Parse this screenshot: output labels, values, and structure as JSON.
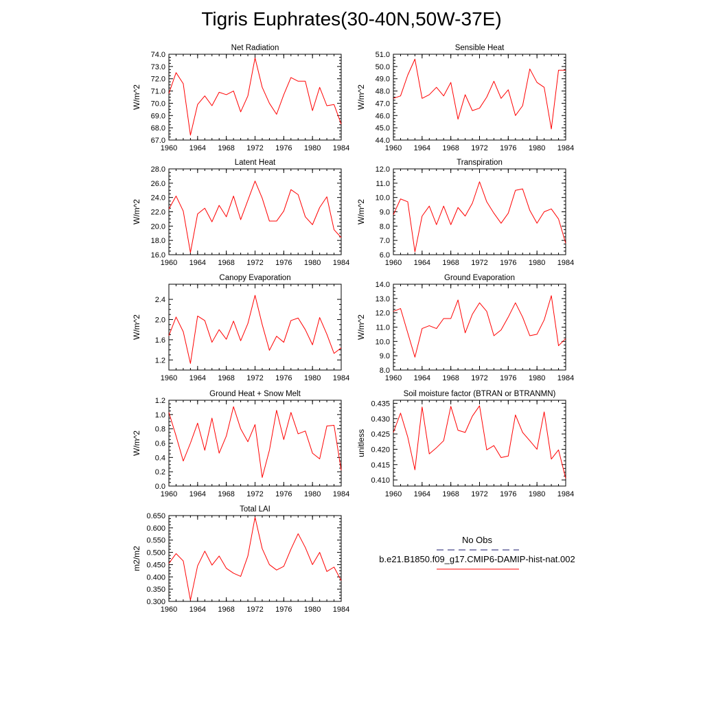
{
  "page_title": "Tigris Euphrates(30-40N,50W-37E)",
  "legend": {
    "entries": [
      {
        "label": "No Obs",
        "color": "#1a1a6e",
        "style": "dashed"
      },
      {
        "label": "b.e21.B1850.f09_g17.CMIP6-DAMIP-hist-nat.002",
        "color": "#ff0000",
        "style": "solid"
      }
    ]
  },
  "chart_data": [
    {
      "type": "line",
      "title": "Net Radiation",
      "ylabel": "W/m^2",
      "xlim": [
        1960,
        1984
      ],
      "ylim": [
        67.0,
        74.0
      ],
      "xticks": [
        "1960",
        "1964",
        "1968",
        "1972",
        "1976",
        "1980",
        "1984"
      ],
      "yticks": [
        "67.0",
        "68.0",
        "69.0",
        "70.0",
        "71.0",
        "72.0",
        "73.0",
        "74.0"
      ],
      "series": [
        {
          "color": "#ff0000",
          "x": [
            1960,
            1961,
            1962,
            1963,
            1964,
            1965,
            1966,
            1967,
            1968,
            1969,
            1970,
            1971,
            1972,
            1973,
            1974,
            1975,
            1976,
            1977,
            1978,
            1979,
            1980,
            1981,
            1982,
            1983,
            1984
          ],
          "y": [
            70.8,
            72.5,
            71.6,
            67.4,
            69.9,
            70.6,
            69.8,
            70.9,
            70.7,
            71.0,
            69.3,
            70.6,
            73.7,
            71.3,
            70.0,
            69.1,
            70.7,
            72.1,
            71.8,
            71.8,
            69.4,
            71.3,
            69.8,
            69.9,
            68.3
          ]
        }
      ]
    },
    {
      "type": "line",
      "title": "Sensible Heat",
      "ylabel": "W/m^2",
      "xlim": [
        1960,
        1984
      ],
      "ylim": [
        44.0,
        51.0
      ],
      "xticks": [
        "1960",
        "1964",
        "1968",
        "1972",
        "1976",
        "1980",
        "1984"
      ],
      "yticks": [
        "44.0",
        "45.0",
        "46.0",
        "47.0",
        "48.0",
        "49.0",
        "50.0",
        "51.0"
      ],
      "series": [
        {
          "color": "#ff0000",
          "x": [
            1960,
            1961,
            1962,
            1963,
            1964,
            1965,
            1966,
            1967,
            1968,
            1969,
            1970,
            1971,
            1972,
            1973,
            1974,
            1975,
            1976,
            1977,
            1978,
            1979,
            1980,
            1981,
            1982,
            1983,
            1984
          ],
          "y": [
            47.4,
            47.6,
            49.3,
            50.6,
            47.4,
            47.7,
            48.3,
            47.6,
            48.7,
            45.7,
            47.7,
            46.4,
            46.6,
            47.5,
            48.8,
            47.4,
            48.1,
            46.0,
            46.8,
            49.8,
            48.7,
            48.3,
            44.9,
            49.7,
            49.7
          ]
        }
      ]
    },
    {
      "type": "line",
      "title": "Latent Heat",
      "ylabel": "W/m^2",
      "xlim": [
        1960,
        1984
      ],
      "ylim": [
        16.0,
        28.0
      ],
      "xticks": [
        "1960",
        "1964",
        "1968",
        "1972",
        "1976",
        "1980",
        "1984"
      ],
      "yticks": [
        "16.0",
        "18.0",
        "20.0",
        "22.0",
        "24.0",
        "26.0",
        "28.0"
      ],
      "series": [
        {
          "color": "#ff0000",
          "x": [
            1960,
            1961,
            1962,
            1963,
            1964,
            1965,
            1966,
            1967,
            1968,
            1969,
            1970,
            1971,
            1972,
            1973,
            1974,
            1975,
            1976,
            1977,
            1978,
            1979,
            1980,
            1981,
            1982,
            1983,
            1984
          ],
          "y": [
            22.4,
            24.2,
            22.1,
            16.3,
            21.7,
            22.5,
            20.6,
            22.9,
            21.3,
            24.2,
            20.9,
            23.6,
            26.3,
            23.9,
            20.7,
            20.7,
            22.1,
            25.1,
            24.4,
            21.3,
            20.2,
            22.6,
            24.1,
            19.5,
            18.4
          ]
        }
      ]
    },
    {
      "type": "line",
      "title": "Transpiration",
      "ylabel": "W/m^2",
      "xlim": [
        1960,
        1984
      ],
      "ylim": [
        6.0,
        12.0
      ],
      "xticks": [
        "1960",
        "1964",
        "1968",
        "1972",
        "1976",
        "1980",
        "1984"
      ],
      "yticks": [
        "6.0",
        "7.0",
        "8.0",
        "9.0",
        "10.0",
        "11.0",
        "12.0"
      ],
      "series": [
        {
          "color": "#ff0000",
          "x": [
            1960,
            1961,
            1962,
            1963,
            1964,
            1965,
            1966,
            1967,
            1968,
            1969,
            1970,
            1971,
            1972,
            1973,
            1974,
            1975,
            1976,
            1977,
            1978,
            1979,
            1980,
            1981,
            1982,
            1983,
            1984
          ],
          "y": [
            8.8,
            9.9,
            9.7,
            6.2,
            8.7,
            9.4,
            8.1,
            9.4,
            8.1,
            9.3,
            8.7,
            9.6,
            11.1,
            9.7,
            8.9,
            8.2,
            8.9,
            10.5,
            10.6,
            9.1,
            8.2,
            9.0,
            9.2,
            8.5,
            6.8
          ]
        }
      ]
    },
    {
      "type": "line",
      "title": "Canopy Evaporation",
      "ylabel": "W/m^2",
      "xlim": [
        1960,
        1984
      ],
      "ylim": [
        1.0,
        2.7
      ],
      "xticks": [
        "1960",
        "1964",
        "1968",
        "1972",
        "1976",
        "1980",
        "1984"
      ],
      "yticks": [
        "1.2",
        "1.6",
        "2.0",
        "2.4"
      ],
      "ytick_values": [
        1.2,
        1.6,
        2.0,
        2.4
      ],
      "series": [
        {
          "color": "#ff0000",
          "x": [
            1960,
            1961,
            1962,
            1963,
            1964,
            1965,
            1966,
            1967,
            1968,
            1969,
            1970,
            1971,
            1972,
            1973,
            1974,
            1975,
            1976,
            1977,
            1978,
            1979,
            1980,
            1981,
            1982,
            1983,
            1984
          ],
          "y": [
            1.68,
            2.05,
            1.76,
            1.13,
            2.07,
            1.98,
            1.55,
            1.8,
            1.61,
            1.97,
            1.58,
            1.92,
            2.48,
            1.9,
            1.39,
            1.67,
            1.55,
            1.98,
            2.03,
            1.8,
            1.5,
            2.04,
            1.71,
            1.33,
            1.44
          ]
        }
      ]
    },
    {
      "type": "line",
      "title": "Ground Evaporation",
      "ylabel": "W/m^2",
      "xlim": [
        1960,
        1984
      ],
      "ylim": [
        8.0,
        14.0
      ],
      "xticks": [
        "1960",
        "1964",
        "1968",
        "1972",
        "1976",
        "1980",
        "1984"
      ],
      "yticks": [
        "8.0",
        "9.0",
        "10.0",
        "11.0",
        "12.0",
        "13.0",
        "14.0"
      ],
      "series": [
        {
          "color": "#ff0000",
          "x": [
            1960,
            1961,
            1962,
            1963,
            1964,
            1965,
            1966,
            1967,
            1968,
            1969,
            1970,
            1971,
            1972,
            1973,
            1974,
            1975,
            1976,
            1977,
            1978,
            1979,
            1980,
            1981,
            1982,
            1983,
            1984
          ],
          "y": [
            12.1,
            12.3,
            10.6,
            8.9,
            10.9,
            11.1,
            10.9,
            11.6,
            11.6,
            12.9,
            10.6,
            11.9,
            12.7,
            12.1,
            10.4,
            10.8,
            11.7,
            12.7,
            11.7,
            10.4,
            10.5,
            11.5,
            13.2,
            9.7,
            10.2
          ]
        }
      ]
    },
    {
      "type": "line",
      "title": "Ground Heat + Snow Melt",
      "ylabel": "W/m^2",
      "xlim": [
        1960,
        1984
      ],
      "ylim": [
        0.0,
        1.2
      ],
      "xticks": [
        "1960",
        "1964",
        "1968",
        "1972",
        "1976",
        "1980",
        "1984"
      ],
      "yticks": [
        "0.0",
        "0.2",
        "0.4",
        "0.6",
        "0.8",
        "1.0",
        "1.2"
      ],
      "series": [
        {
          "color": "#ff0000",
          "x": [
            1960,
            1961,
            1962,
            1963,
            1964,
            1965,
            1966,
            1967,
            1968,
            1969,
            1970,
            1971,
            1972,
            1973,
            1974,
            1975,
            1976,
            1977,
            1978,
            1979,
            1980,
            1981,
            1982,
            1983,
            1984
          ],
          "y": [
            1.03,
            0.7,
            0.35,
            0.6,
            0.88,
            0.5,
            0.95,
            0.46,
            0.7,
            1.11,
            0.8,
            0.62,
            0.86,
            0.12,
            0.5,
            1.06,
            0.65,
            1.03,
            0.73,
            0.77,
            0.46,
            0.38,
            0.84,
            0.85,
            0.22
          ]
        }
      ]
    },
    {
      "type": "line",
      "title": "Soil moisture factor (BTRAN or BTRANMN)",
      "ylabel": "unitless",
      "xlim": [
        1960,
        1984
      ],
      "ylim": [
        0.408,
        0.436
      ],
      "xticks": [
        "1960",
        "1964",
        "1968",
        "1972",
        "1976",
        "1980",
        "1984"
      ],
      "yticks": [
        "0.410",
        "0.415",
        "0.420",
        "0.425",
        "0.430",
        "0.435"
      ],
      "ytick_values": [
        0.41,
        0.415,
        0.42,
        0.425,
        0.43,
        0.435
      ],
      "series": [
        {
          "color": "#ff0000",
          "x": [
            1960,
            1961,
            1962,
            1963,
            1964,
            1965,
            1966,
            1967,
            1968,
            1969,
            1970,
            1971,
            1972,
            1973,
            1974,
            1975,
            1976,
            1977,
            1978,
            1979,
            1980,
            1981,
            1982,
            1983,
            1984
          ],
          "y": [
            0.4255,
            0.4318,
            0.424,
            0.4133,
            0.4338,
            0.4185,
            0.4205,
            0.4228,
            0.434,
            0.4262,
            0.4255,
            0.4308,
            0.4342,
            0.4198,
            0.4212,
            0.4173,
            0.4178,
            0.4312,
            0.4255,
            0.4228,
            0.42,
            0.4322,
            0.4168,
            0.4198,
            0.4105
          ]
        }
      ]
    },
    {
      "type": "line",
      "title": "Total LAI",
      "ylabel": "m2/m2",
      "xlim": [
        1960,
        1984
      ],
      "ylim": [
        0.3,
        0.65
      ],
      "xticks": [
        "1960",
        "1964",
        "1968",
        "1972",
        "1976",
        "1980",
        "1984"
      ],
      "yticks": [
        "0.300",
        "0.350",
        "0.400",
        "0.450",
        "0.500",
        "0.550",
        "0.600",
        "0.650"
      ],
      "series": [
        {
          "color": "#ff0000",
          "x": [
            1960,
            1961,
            1962,
            1963,
            1964,
            1965,
            1966,
            1967,
            1968,
            1969,
            1970,
            1971,
            1972,
            1973,
            1974,
            1975,
            1976,
            1977,
            1978,
            1979,
            1980,
            1981,
            1982,
            1983,
            1984
          ],
          "y": [
            0.455,
            0.495,
            0.465,
            0.305,
            0.445,
            0.505,
            0.448,
            0.485,
            0.435,
            0.415,
            0.402,
            0.485,
            0.643,
            0.515,
            0.45,
            0.428,
            0.443,
            0.513,
            0.576,
            0.52,
            0.45,
            0.5,
            0.422,
            0.44,
            0.385
          ]
        }
      ]
    }
  ]
}
